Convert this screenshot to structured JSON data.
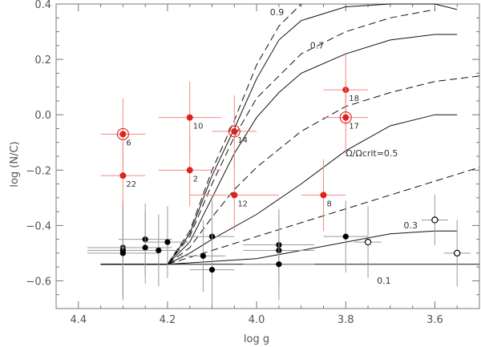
{
  "chart_data": {
    "type": "scatter",
    "title": "",
    "xlabel": "log g",
    "ylabel": "log (N/C)",
    "xlim": [
      4.45,
      3.5
    ],
    "ylim": [
      -0.7,
      0.4
    ],
    "x_ticks": [
      4.4,
      4.2,
      4.0,
      3.8,
      3.6
    ],
    "x_tick_labels": [
      "4.4",
      "4.2",
      "4.0",
      "3.8",
      "3.6"
    ],
    "y_ticks": [
      0.4,
      0.2,
      0.0,
      -0.2,
      -0.4,
      -0.6
    ],
    "y_tick_labels": [
      "0.4",
      "0.2",
      "0.0",
      "−0.2",
      "−0.4",
      "−0.6"
    ],
    "grid": false,
    "colors": {
      "red": "#e0221c",
      "red_error": "#f08a84",
      "black": "#000000",
      "gray_error": "#999999"
    },
    "red_stars": [
      {
        "x": 4.3,
        "y": -0.07,
        "xerr": 0.05,
        "yerr": 0.13,
        "label": "6",
        "ring": true
      },
      {
        "x": 4.3,
        "y": -0.22,
        "xerr": 0.05,
        "yerr": 0.13,
        "label": "22",
        "ring": false
      },
      {
        "x": 4.15,
        "y": -0.01,
        "xerr": 0.07,
        "yerr": 0.13,
        "label": "10",
        "ring": false
      },
      {
        "x": 4.15,
        "y": -0.2,
        "xerr": 0.07,
        "yerr": 0.13,
        "label": "2",
        "ring": false
      },
      {
        "x": 4.05,
        "y": -0.06,
        "xerr": 0.05,
        "yerr": 0.13,
        "label": "14",
        "ring": true
      },
      {
        "x": 4.05,
        "y": -0.29,
        "xerr": 0.1,
        "yerr": 0.13,
        "label": "12",
        "ring": false
      },
      {
        "x": 3.85,
        "y": -0.29,
        "xerr": 0.05,
        "yerr": 0.13,
        "label": "8",
        "ring": false
      },
      {
        "x": 3.8,
        "y": 0.09,
        "xerr": 0.05,
        "yerr": 0.13,
        "label": "18",
        "ring": false
      },
      {
        "x": 3.8,
        "y": -0.01,
        "xerr": 0.05,
        "yerr": 0.13,
        "label": "17",
        "ring": true
      }
    ],
    "black_stars": [
      {
        "x": 4.3,
        "y": -0.48,
        "xerr": 0.08,
        "yerr": 0.17
      },
      {
        "x": 4.3,
        "y": -0.49,
        "xerr": 0.08,
        "yerr": 0.17
      },
      {
        "x": 4.3,
        "y": -0.5,
        "xerr": 0.08,
        "yerr": 0.17
      },
      {
        "x": 4.25,
        "y": -0.45,
        "xerr": 0.06,
        "yerr": 0.13
      },
      {
        "x": 4.25,
        "y": -0.48,
        "xerr": 0.06,
        "yerr": 0.13
      },
      {
        "x": 4.22,
        "y": -0.49,
        "xerr": 0.05,
        "yerr": 0.13
      },
      {
        "x": 4.2,
        "y": -0.46,
        "xerr": 0.05,
        "yerr": 0.13
      },
      {
        "x": 4.12,
        "y": -0.51,
        "xerr": 0.05,
        "yerr": 0.13
      },
      {
        "x": 4.1,
        "y": -0.44,
        "xerr": 0.05,
        "yerr": 0.13
      },
      {
        "x": 4.1,
        "y": -0.56,
        "xerr": 0.05,
        "yerr": 0.13
      },
      {
        "x": 3.95,
        "y": -0.47,
        "xerr": 0.08,
        "yerr": 0.13
      },
      {
        "x": 3.95,
        "y": -0.49,
        "xerr": 0.08,
        "yerr": 0.13
      },
      {
        "x": 3.95,
        "y": -0.54,
        "xerr": 0.08,
        "yerr": 0.13
      },
      {
        "x": 3.8,
        "y": -0.44,
        "xerr": 0.05,
        "yerr": 0.13
      }
    ],
    "open_circles": [
      {
        "x": 3.75,
        "y": -0.46,
        "xerr": 0.03,
        "yerr": 0.13
      },
      {
        "x": 3.6,
        "y": -0.38,
        "xerr": 0.03,
        "yerr": 0.09
      },
      {
        "x": 3.55,
        "y": -0.5,
        "xerr": 0.03,
        "yerr": 0.12
      }
    ],
    "model_tracks": [
      {
        "label": "0.1",
        "label_at": [
          3.73,
          -0.61
        ],
        "solid": [
          [
            4.35,
            -0.54
          ],
          [
            4.2,
            -0.54
          ],
          [
            4.0,
            -0.54
          ],
          [
            3.8,
            -0.54
          ],
          [
            3.5,
            -0.54
          ]
        ],
        "dashed": null
      },
      {
        "label": "0.3",
        "label_at": [
          3.67,
          -0.41
        ],
        "solid": [
          [
            4.35,
            -0.54
          ],
          [
            4.2,
            -0.54
          ],
          [
            4.1,
            -0.53
          ],
          [
            4.0,
            -0.52
          ],
          [
            3.9,
            -0.49
          ],
          [
            3.8,
            -0.46
          ],
          [
            3.7,
            -0.43
          ],
          [
            3.6,
            -0.42
          ],
          [
            3.55,
            -0.42
          ]
        ],
        "dashed": [
          [
            4.35,
            -0.54
          ],
          [
            4.2,
            -0.54
          ],
          [
            4.1,
            -0.49
          ],
          [
            4.0,
            -0.44
          ],
          [
            3.9,
            -0.39
          ],
          [
            3.8,
            -0.34
          ],
          [
            3.7,
            -0.29
          ],
          [
            3.6,
            -0.24
          ],
          [
            3.5,
            -0.19
          ]
        ]
      },
      {
        "label": "Ω/Ωₕcritₕ=0.5",
        "label_at": [
          3.8,
          -0.15
        ],
        "solid": [
          [
            4.35,
            -0.54
          ],
          [
            4.2,
            -0.54
          ],
          [
            4.15,
            -0.5
          ],
          [
            4.1,
            -0.45
          ],
          [
            4.0,
            -0.36
          ],
          [
            3.9,
            -0.25
          ],
          [
            3.8,
            -0.13
          ],
          [
            3.7,
            -0.04
          ],
          [
            3.6,
            0.0
          ],
          [
            3.55,
            0.0
          ]
        ],
        "dashed": [
          [
            4.35,
            -0.54
          ],
          [
            4.2,
            -0.54
          ],
          [
            4.15,
            -0.48
          ],
          [
            4.1,
            -0.37
          ],
          [
            4.05,
            -0.27
          ],
          [
            4.0,
            -0.19
          ],
          [
            3.9,
            -0.06
          ],
          [
            3.8,
            0.03
          ],
          [
            3.7,
            0.08
          ],
          [
            3.6,
            0.12
          ],
          [
            3.5,
            0.14
          ]
        ]
      },
      {
        "label": "0.7",
        "label_at": [
          3.88,
          0.24
        ],
        "solid": [
          [
            4.35,
            -0.54
          ],
          [
            4.2,
            -0.54
          ],
          [
            4.15,
            -0.46
          ],
          [
            4.1,
            -0.3
          ],
          [
            4.05,
            -0.14
          ],
          [
            4.0,
            -0.01
          ],
          [
            3.95,
            0.08
          ],
          [
            3.9,
            0.15
          ],
          [
            3.8,
            0.22
          ],
          [
            3.7,
            0.27
          ],
          [
            3.6,
            0.29
          ],
          [
            3.55,
            0.29
          ]
        ],
        "dashed": [
          [
            4.35,
            -0.54
          ],
          [
            4.2,
            -0.54
          ],
          [
            4.15,
            -0.44
          ],
          [
            4.1,
            -0.25
          ],
          [
            4.05,
            -0.08
          ],
          [
            4.0,
            0.06
          ],
          [
            3.9,
            0.22
          ],
          [
            3.8,
            0.3
          ],
          [
            3.7,
            0.35
          ],
          [
            3.6,
            0.38
          ]
        ]
      },
      {
        "label": "0.9",
        "label_at": [
          3.97,
          0.36
        ],
        "solid": [
          [
            4.35,
            -0.54
          ],
          [
            4.2,
            -0.54
          ],
          [
            4.15,
            -0.43
          ],
          [
            4.1,
            -0.22
          ],
          [
            4.05,
            -0.05
          ],
          [
            4.0,
            0.13
          ],
          [
            3.95,
            0.27
          ],
          [
            3.9,
            0.34
          ],
          [
            3.8,
            0.39
          ],
          [
            3.7,
            0.4
          ],
          [
            3.6,
            0.4
          ],
          [
            3.55,
            0.38
          ]
        ],
        "dashed": [
          [
            4.35,
            -0.54
          ],
          [
            4.2,
            -0.54
          ],
          [
            4.15,
            -0.42
          ],
          [
            4.1,
            -0.2
          ],
          [
            4.05,
            -0.02
          ],
          [
            4.0,
            0.18
          ],
          [
            3.95,
            0.32
          ],
          [
            3.9,
            0.4
          ]
        ]
      }
    ]
  }
}
